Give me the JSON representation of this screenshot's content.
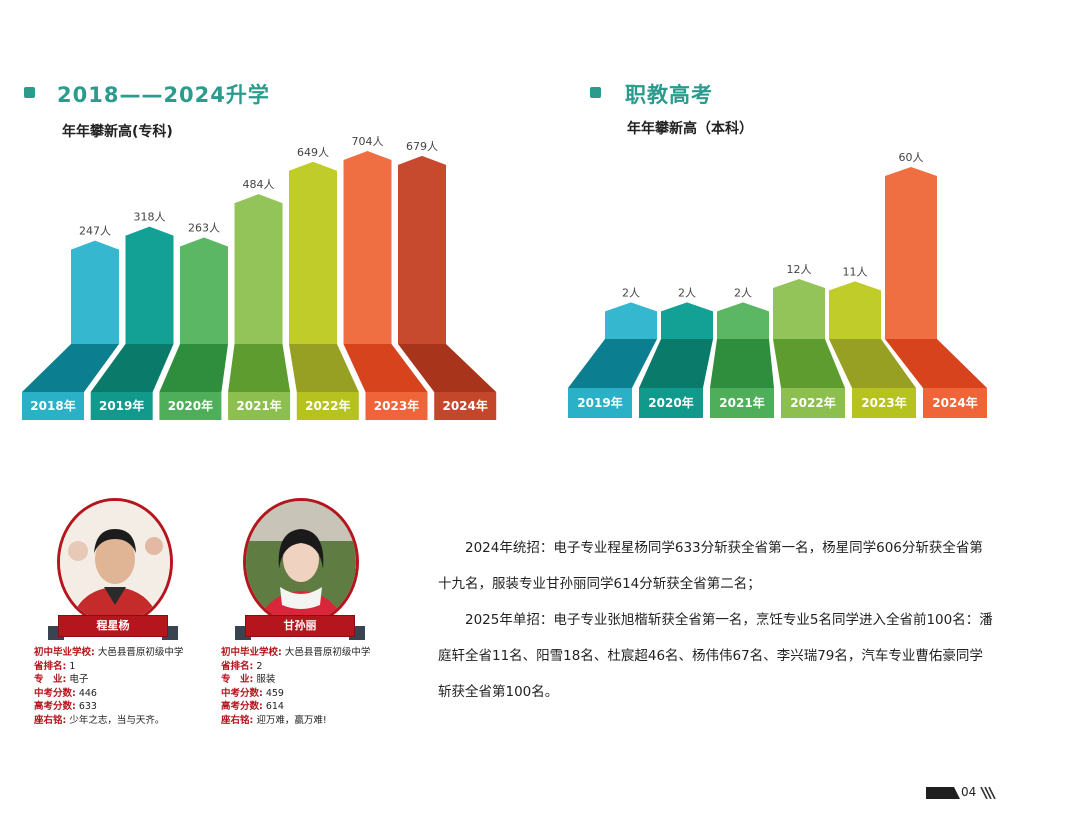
{
  "left_section": {
    "title": "2018——2024升学",
    "subtitle": "年年攀新高(专科)"
  },
  "right_section": {
    "title": "职教高考",
    "subtitle": "年年攀新高（本科）"
  },
  "chart_data": [
    {
      "type": "bar",
      "title": "年年攀新高(专科)",
      "categories": [
        "2018年",
        "2019年",
        "2020年",
        "2021年",
        "2022年",
        "2023年",
        "2024年"
      ],
      "values": [
        247,
        318,
        263,
        484,
        649,
        704,
        679
      ],
      "labels": [
        "247人",
        "318人",
        "263人",
        "484人",
        "649人",
        "704人",
        "679人"
      ],
      "colors": [
        "#35b8cf",
        "#13a095",
        "#5cb765",
        "#93c45a",
        "#bfcc2a",
        "#ef6f43",
        "#c7492e"
      ],
      "base_colors": [
        "#0b7f8f",
        "#0a7a6b",
        "#2f8d3e",
        "#5e9c2f",
        "#97a022",
        "#d6431c",
        "#a8341c"
      ],
      "label_colors": [
        "#2ab0c7",
        "#11998c",
        "#4fae5a",
        "#8cbf4e",
        "#b6c220",
        "#ef6438",
        "#c4472c"
      ]
    },
    {
      "type": "bar",
      "title": "年年攀新高（本科）",
      "categories": [
        "2019年",
        "2020年",
        "2021年",
        "2022年",
        "2023年",
        "2024年"
      ],
      "values": [
        2,
        2,
        2,
        12,
        11,
        60
      ],
      "labels": [
        "2人",
        "2人",
        "2人",
        "12人",
        "11人",
        "60人"
      ],
      "colors": [
        "#35b8cf",
        "#13a095",
        "#5cb765",
        "#93c45a",
        "#bfcc2a",
        "#ef6f43"
      ],
      "base_colors": [
        "#0b7f8f",
        "#0a7a6b",
        "#2f8d3e",
        "#5e9c2f",
        "#97a022",
        "#d6431c"
      ],
      "label_colors": [
        "#2ab0c7",
        "#11998c",
        "#4fae5a",
        "#8cbf4e",
        "#b6c220",
        "#ef6438"
      ]
    }
  ],
  "students": [
    {
      "name": "程星杨",
      "school_label": "初中毕业学校:",
      "school": "大邑县晋原初级中学",
      "rank_label": "省排名:",
      "rank": "1",
      "major_label": "专　业:",
      "major": "电子",
      "zhongkao_label": "中考分数:",
      "zhongkao": "446",
      "gaokao_label": "高考分数:",
      "gaokao": "633",
      "motto_label": "座右铭:",
      "motto": "少年之志，当与天齐。"
    },
    {
      "name": "甘孙丽",
      "school_label": "初中毕业学校:",
      "school": "大邑县晋原初级中学",
      "rank_label": "省排名:",
      "rank": "2",
      "major_label": "专　业:",
      "major": "服装",
      "zhongkao_label": "中考分数:",
      "zhongkao": "459",
      "gaokao_label": "高考分数:",
      "gaokao": "614",
      "motto_label": "座右铭:",
      "motto": "迎万难，赢万难!"
    }
  ],
  "paragraphs": [
    "2024年统招：电子专业程星杨同学633分斩获全省第一名，杨星同学606分斩获全省第十九名，服装专业甘孙丽同学614分斩获全省第二名；",
    "2025年单招：电子专业张旭楷斩获全省第一名，烹饪专业5名同学进入全省前100名：潘庭轩全省11名、阳雪18名、杜宸超46名、杨伟伟67名、李兴瑞79名，汽车专业曹佑豪同学斩获全省第100名。"
  ],
  "page_number": "04"
}
